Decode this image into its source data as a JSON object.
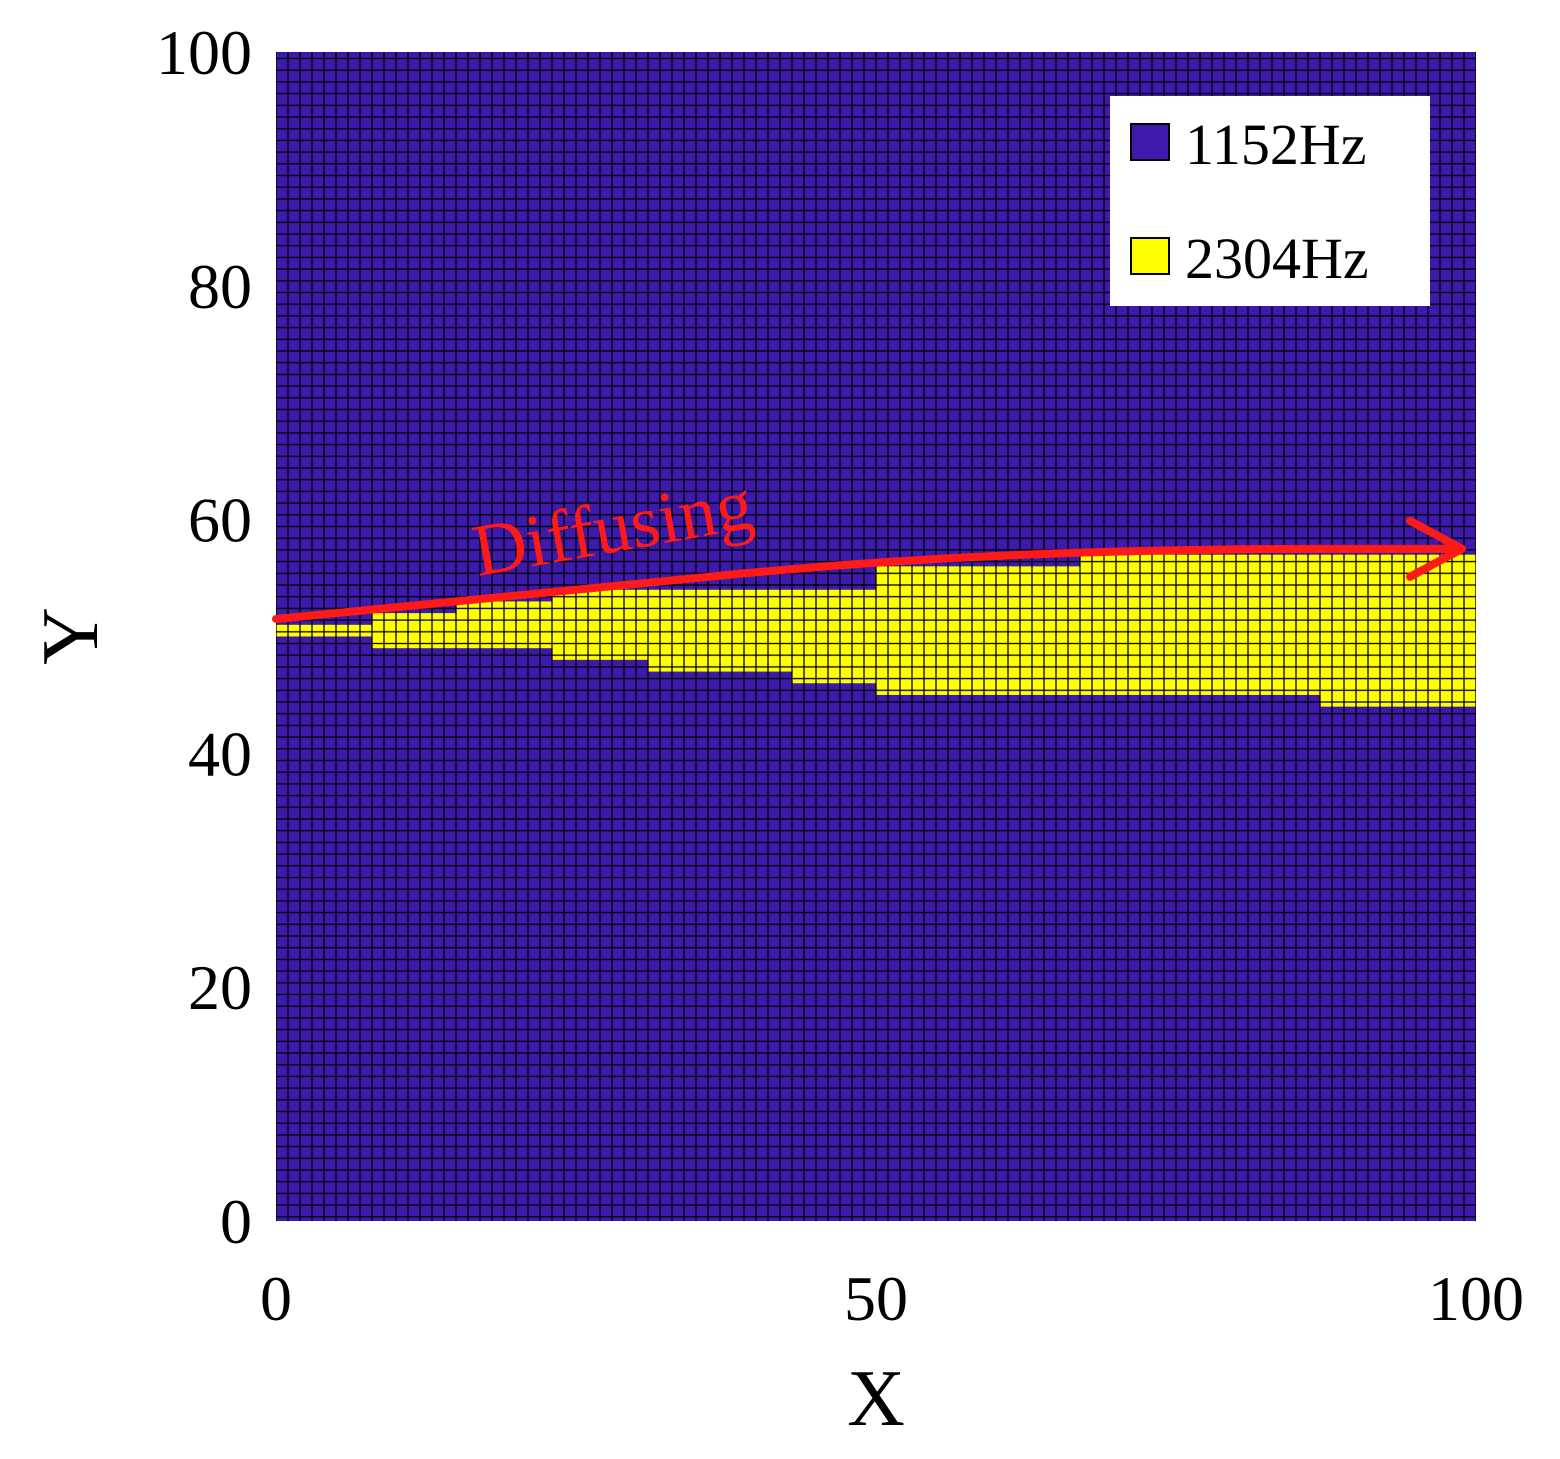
{
  "chart_data": {
    "type": "heatmap",
    "xlabel": "X",
    "ylabel": "Y",
    "xlim": [
      0,
      100
    ],
    "ylim": [
      0,
      100
    ],
    "xticks": [
      "0",
      "50",
      "100"
    ],
    "yticks": [
      "0",
      "20",
      "40",
      "60",
      "80",
      "100"
    ],
    "grid": "cell-grid",
    "series": [
      {
        "name": "1152Hz",
        "color": "#3d1aab"
      },
      {
        "name": "2304Hz",
        "color": "#ffff00"
      }
    ],
    "legend_position": "top-right",
    "background_value": "1152Hz",
    "region_value": "2304Hz",
    "region_2304Hz_column_spans": [
      {
        "x": [
          0,
          8
        ],
        "y": [
          50,
          51
        ]
      },
      {
        "x": [
          8,
          15
        ],
        "y": [
          49,
          52
        ]
      },
      {
        "x": [
          15,
          23
        ],
        "y": [
          49,
          53
        ]
      },
      {
        "x": [
          23,
          31
        ],
        "y": [
          48,
          54
        ]
      },
      {
        "x": [
          31,
          43
        ],
        "y": [
          47,
          54
        ]
      },
      {
        "x": [
          43,
          50
        ],
        "y": [
          46,
          54
        ]
      },
      {
        "x": [
          50,
          67
        ],
        "y": [
          45,
          56
        ]
      },
      {
        "x": [
          67,
          87
        ],
        "y": [
          45,
          57
        ]
      },
      {
        "x": [
          87,
          100
        ],
        "y": [
          44,
          57
        ]
      }
    ],
    "annotation": {
      "text": "Diffusing",
      "arrow_points": [
        [
          0,
          51.5
        ],
        [
          25,
          54
        ],
        [
          50,
          56.5
        ],
        [
          75,
          57.5
        ],
        [
          98,
          57.5
        ]
      ]
    }
  }
}
